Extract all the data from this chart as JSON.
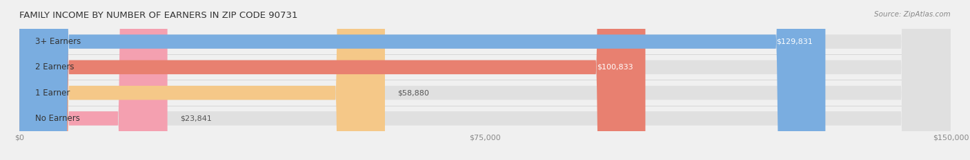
{
  "title": "FAMILY INCOME BY NUMBER OF EARNERS IN ZIP CODE 90731",
  "source": "Source: ZipAtlas.com",
  "categories": [
    "No Earners",
    "1 Earner",
    "2 Earners",
    "3+ Earners"
  ],
  "values": [
    23841,
    58880,
    100833,
    129831
  ],
  "bar_colors": [
    "#f4a0b0",
    "#f5c888",
    "#e88070",
    "#7aade0"
  ],
  "bar_edge_colors": [
    "#e07888",
    "#e0a850",
    "#d06050",
    "#4a8acc"
  ],
  "label_colors": [
    "#555555",
    "#555555",
    "#ffffff",
    "#ffffff"
  ],
  "background_color": "#f0f0f0",
  "bar_bg_color": "#e8e8e8",
  "xlim": [
    0,
    150000
  ],
  "xticks": [
    0,
    75000,
    150000
  ],
  "xtick_labels": [
    "$0",
    "$75,000",
    "$150,000"
  ],
  "bar_height": 0.55,
  "figsize": [
    14.06,
    2.33
  ],
  "dpi": 100
}
